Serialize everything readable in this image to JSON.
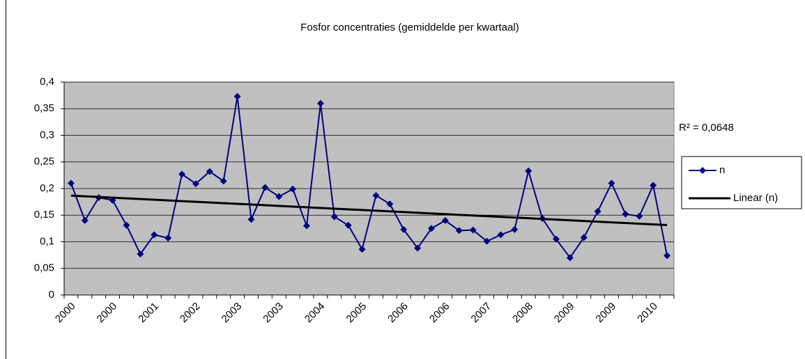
{
  "chart_data": {
    "type": "line",
    "title": "Fosfor concentraties (gemiddelde per kwartaal)",
    "categories": [
      "2000",
      null,
      null,
      "2000",
      null,
      null,
      "2001",
      null,
      null,
      "2002",
      null,
      null,
      "2003",
      null,
      null,
      "2003",
      null,
      null,
      "2004",
      null,
      null,
      "2005",
      null,
      null,
      "2006",
      null,
      null,
      "2006",
      null,
      null,
      "2007",
      null,
      null,
      "2008",
      null,
      null,
      "2009",
      null,
      null,
      "2009",
      null,
      null,
      "2010",
      null
    ],
    "series": [
      {
        "name": "n",
        "color": "#000080",
        "values": [
          0.21,
          0.14,
          0.183,
          0.178,
          0.131,
          0.077,
          0.113,
          0.107,
          0.227,
          0.209,
          0.232,
          0.214,
          0.373,
          0.142,
          0.202,
          0.185,
          0.199,
          0.13,
          0.36,
          0.147,
          0.131,
          0.086,
          0.187,
          0.171,
          0.123,
          0.088,
          0.125,
          0.14,
          0.121,
          0.122,
          0.101,
          0.113,
          0.123,
          0.233,
          0.144,
          0.105,
          0.07,
          0.108,
          0.157,
          0.21,
          0.152,
          0.148,
          0.206,
          0.074
        ]
      }
    ],
    "trendline": {
      "name": "Linear (n)",
      "color": "#000000",
      "annotation": "R² = 0,0648"
    },
    "ylim": [
      0,
      0.4
    ],
    "yticks": [
      0,
      {
        "value": 0.05,
        "label": "0,05"
      },
      {
        "value": 0.1,
        "label": "0,1"
      },
      {
        "value": 0.15,
        "label": "0,15"
      },
      {
        "value": 0.2,
        "label": "0,2"
      },
      {
        "value": 0.25,
        "label": "0,25"
      },
      {
        "value": 0.3,
        "label": "0,3"
      },
      {
        "value": 0.35,
        "label": "0,35"
      },
      {
        "value": 0.4,
        "label": "0,4"
      }
    ],
    "grid": true,
    "plot_background": "#c0c0c0",
    "legend": "right"
  }
}
